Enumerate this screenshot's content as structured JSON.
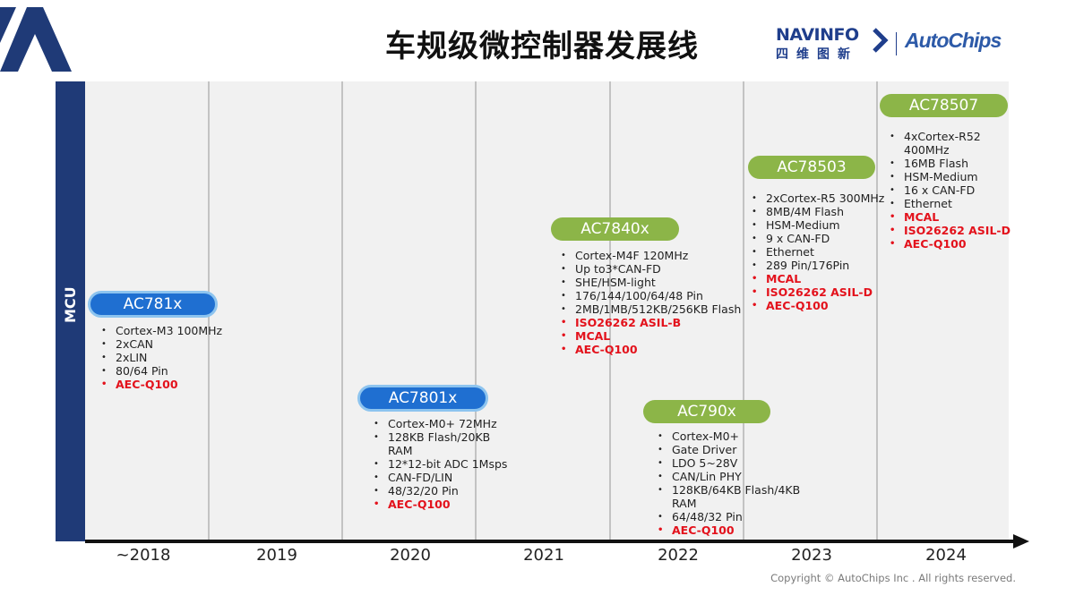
{
  "slide": {
    "title": "车规级微控制器发展线",
    "y_axis_label": "MCU",
    "copyright": "Copyright © AutoChips Inc . All rights reserved."
  },
  "brand": {
    "navinfo": "NAVINFO",
    "navinfo_cn": "四维图新",
    "autochips": "AutoChips"
  },
  "colors": {
    "navy": "#1f3a77",
    "blue_pill": "#1f6fd1",
    "green_pill": "#8cb548",
    "highlight": "#e3121c",
    "chart_bg": "#f1f1f1"
  },
  "timeline": {
    "years": [
      "~2018",
      "2019",
      "2020",
      "2021",
      "2022",
      "2023",
      "2024"
    ]
  },
  "products": [
    {
      "name": "AC781x",
      "style": "blue",
      "specs": [
        {
          "text": "Cortex-M3 100MHz"
        },
        {
          "text": "2xCAN"
        },
        {
          "text": "2xLIN"
        },
        {
          "text": "80/64 Pin"
        },
        {
          "text": "AEC-Q100",
          "highlight": true
        }
      ]
    },
    {
      "name": "AC7801x",
      "style": "blue",
      "specs": [
        {
          "text": "Cortex-M0+ 72MHz"
        },
        {
          "text": "128KB Flash/20KB RAM"
        },
        {
          "text": "12*12-bit ADC 1Msps"
        },
        {
          "text": "CAN-FD/LIN"
        },
        {
          "text": "48/32/20 Pin"
        },
        {
          "text": "AEC-Q100",
          "highlight": true
        }
      ]
    },
    {
      "name": "AC7840x",
      "style": "green",
      "specs": [
        {
          "text": "Cortex-M4F 120MHz"
        },
        {
          "text": "Up to3*CAN-FD"
        },
        {
          "text": "SHE/HSM-light"
        },
        {
          "text": "176/144/100/64/48 Pin"
        },
        {
          "text": "2MB/1MB/512KB/256KB Flash"
        },
        {
          "text": "ISO26262 ASIL-B",
          "highlight": true
        },
        {
          "text": "MCAL",
          "highlight": true
        },
        {
          "text": "AEC-Q100",
          "highlight": true
        }
      ]
    },
    {
      "name": "AC790x",
      "style": "green",
      "specs": [
        {
          "text": "Cortex-M0+"
        },
        {
          "text": "Gate Driver"
        },
        {
          "text": "LDO 5~28V"
        },
        {
          "text": "CAN/Lin PHY"
        },
        {
          "text": "128KB/64KB Flash/4KB RAM"
        },
        {
          "text": "64/48/32 Pin"
        },
        {
          "text": "AEC-Q100",
          "highlight": true
        }
      ]
    },
    {
      "name": "AC78503",
      "style": "green",
      "specs": [
        {
          "text": "2xCortex-R5 300MHz"
        },
        {
          "text": "8MB/4M Flash"
        },
        {
          "text": "HSM-Medium"
        },
        {
          "text": "9 x CAN-FD"
        },
        {
          "text": "Ethernet"
        },
        {
          "text": "289 Pin/176Pin"
        },
        {
          "text": "MCAL",
          "highlight": true
        },
        {
          "text": "ISO26262 ASIL-D",
          "highlight": true
        },
        {
          "text": "AEC-Q100",
          "highlight": true
        }
      ]
    },
    {
      "name": "AC78507",
      "style": "green",
      "specs": [
        {
          "text": "4xCortex-R52 400MHz"
        },
        {
          "text": "16MB Flash"
        },
        {
          "text": "HSM-Medium"
        },
        {
          "text": "16 x CAN-FD"
        },
        {
          "text": "Ethernet"
        },
        {
          "text": "MCAL",
          "highlight": true
        },
        {
          "text": "ISO26262 ASIL-D",
          "highlight": true
        },
        {
          "text": "AEC-Q100",
          "highlight": true
        }
      ]
    }
  ]
}
